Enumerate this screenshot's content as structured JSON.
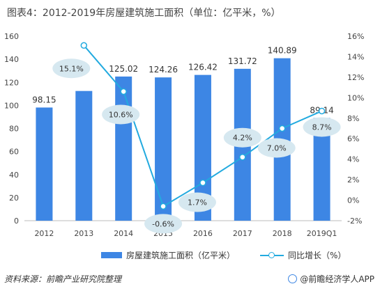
{
  "title": "图表4：2012-2019年房屋建筑施工面积（单位：亿平米，%）",
  "source": "资料来源：前瞻产业研究院整理",
  "brand": "@前瞻经济学人APP",
  "colors": {
    "bar": "#3d86e4",
    "line": "#22aadf",
    "bubble": "#d6e8f0"
  },
  "chart_data": {
    "type": "bar",
    "categories": [
      "2012",
      "2013",
      "2014",
      "2015",
      "2016",
      "2017",
      "2018",
      "2019Q1"
    ],
    "series": [
      {
        "name": "房屋建筑施工面积（亿平米）",
        "type": "bar",
        "axis": "left",
        "values": [
          98.15,
          112.5,
          125.02,
          124.26,
          126.42,
          131.72,
          140.89,
          89.14
        ],
        "labels": [
          "98.15",
          "",
          "125.02",
          "124.26",
          "126.42",
          "131.72",
          "140.89",
          "89.14"
        ]
      },
      {
        "name": "同比增长（%）",
        "type": "line",
        "axis": "right",
        "values": [
          null,
          15.1,
          10.6,
          -0.6,
          1.7,
          4.2,
          7.0,
          8.7
        ],
        "labels": [
          "",
          "15.1%",
          "10.6%",
          "-0.6%",
          "1.7%",
          "4.2%",
          "7.0%",
          "8.7%"
        ]
      }
    ],
    "y_left": {
      "min": 0,
      "max": 160,
      "ticks": [
        "0",
        "20",
        "40",
        "60",
        "80",
        "100",
        "120",
        "140",
        "160"
      ]
    },
    "y_right": {
      "min": -2,
      "max": 16,
      "ticks": [
        "-2%",
        "0%",
        "2%",
        "4%",
        "6%",
        "8%",
        "10%",
        "12%",
        "14%",
        "16%"
      ]
    },
    "grid": false,
    "legend_position": "bottom"
  }
}
